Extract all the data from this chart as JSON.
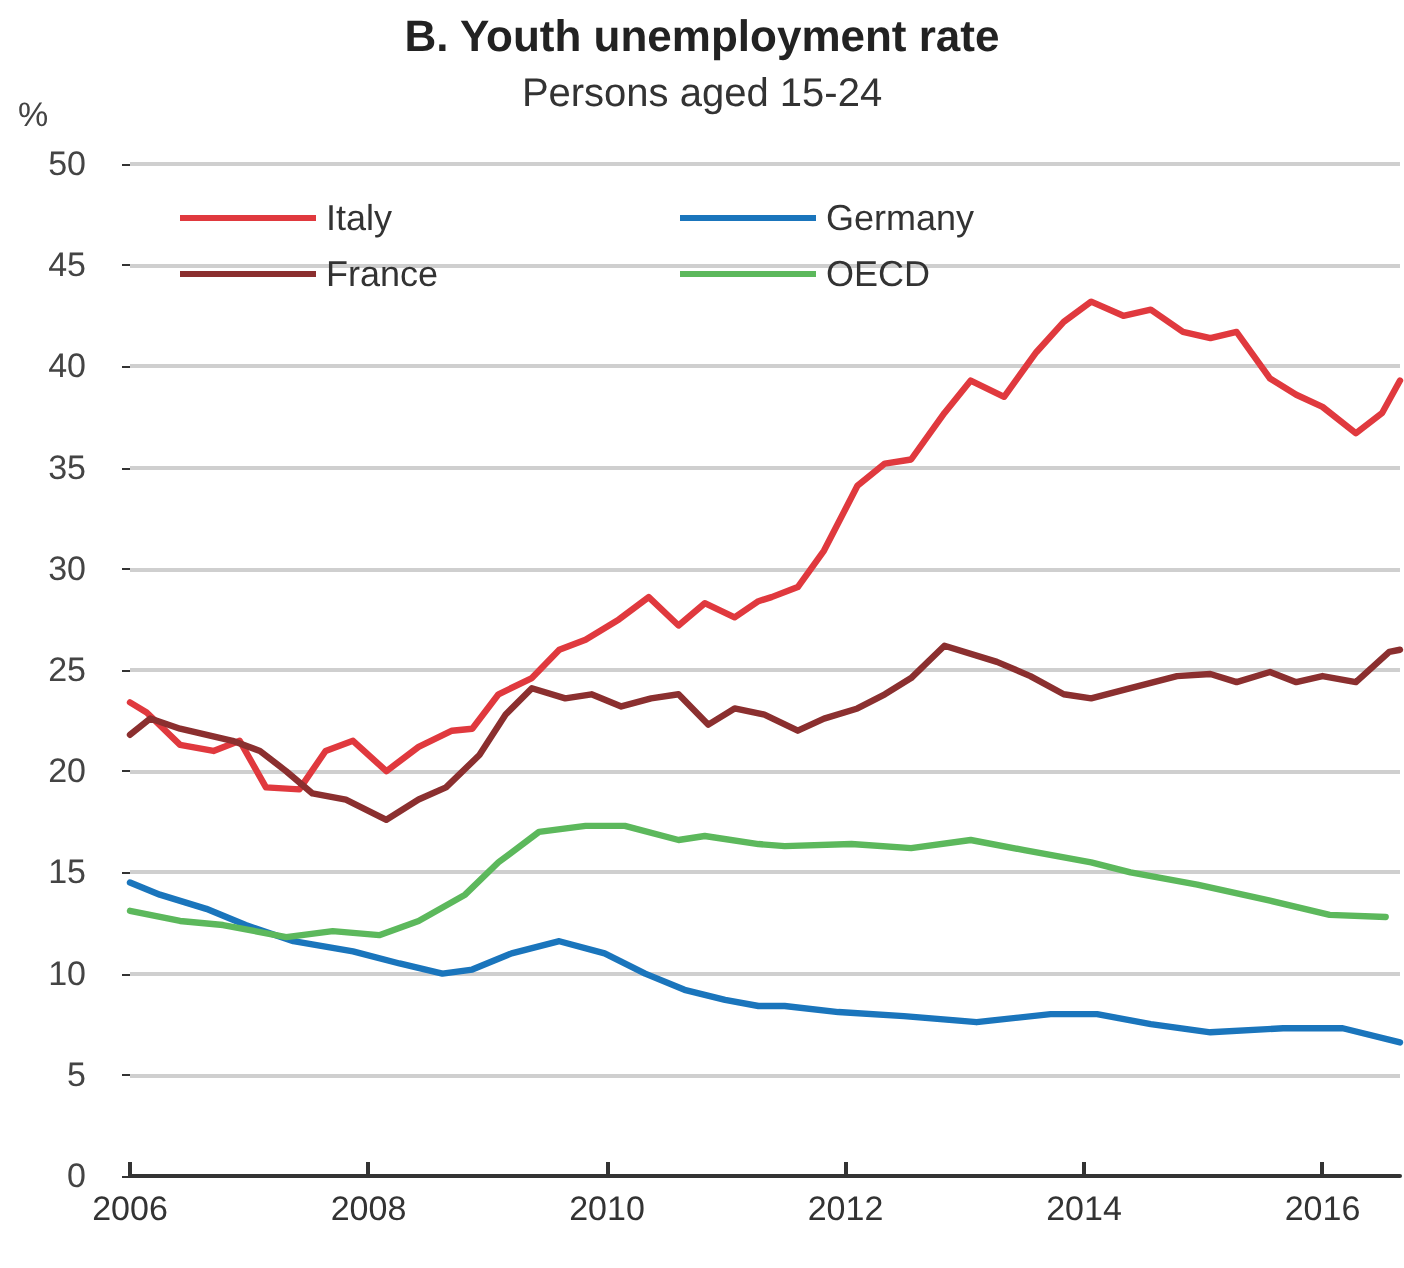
{
  "chart_data": {
    "type": "line",
    "title": "B. Youth unemployment rate",
    "subtitle": "Persons aged 15-24",
    "ylabel": "%",
    "xlim": [
      2006,
      2016.65
    ],
    "xticks": [
      2006,
      2008,
      2010,
      2012,
      2014,
      2016
    ],
    "ylim": [
      0,
      50
    ],
    "yticks": [
      0,
      5,
      10,
      15,
      20,
      25,
      30,
      35,
      40,
      45,
      50
    ],
    "grid": "y",
    "legend": "top left",
    "marker": "none",
    "line_style": "solid",
    "series": [
      {
        "name": "Italy",
        "color": "#e0393e",
        "x": [
          2006.0,
          2006.14,
          2006.42,
          2006.7,
          2006.92,
          2007.14,
          2007.42,
          2007.64,
          2007.87,
          2008.15,
          2008.42,
          2008.7,
          2008.87,
          2009.09,
          2009.37,
          2009.6,
          2009.82,
          2010.1,
          2010.35,
          2010.6,
          2010.82,
          2011.07,
          2011.27,
          2011.38,
          2011.6,
          2011.82,
          2012.1,
          2012.33,
          2012.55,
          2012.83,
          2013.05,
          2013.33,
          2013.6,
          2013.83,
          2014.06,
          2014.33,
          2014.56,
          2014.83,
          2015.06,
          2015.28,
          2015.56,
          2015.78,
          2016.0,
          2016.28,
          2016.5,
          2016.65
        ],
        "values": [
          23.4,
          22.9,
          21.3,
          21.0,
          21.5,
          19.2,
          19.1,
          21.0,
          21.5,
          20.0,
          21.2,
          22.0,
          22.1,
          23.8,
          24.6,
          26.0,
          26.5,
          27.5,
          28.6,
          27.2,
          28.3,
          27.6,
          28.4,
          28.6,
          29.1,
          30.9,
          34.1,
          35.2,
          35.4,
          37.7,
          39.3,
          38.5,
          40.7,
          42.2,
          43.2,
          42.5,
          42.8,
          41.7,
          41.4,
          41.7,
          39.4,
          38.6,
          38.0,
          36.7,
          37.7,
          39.3
        ]
      },
      {
        "name": "Germany",
        "color": "#1a75bc",
        "x": [
          2006.0,
          2006.25,
          2006.64,
          2006.97,
          2007.37,
          2007.87,
          2008.26,
          2008.62,
          2008.87,
          2009.2,
          2009.6,
          2009.98,
          2010.32,
          2010.65,
          2010.99,
          2011.27,
          2011.49,
          2011.94,
          2012.49,
          2013.1,
          2013.72,
          2014.11,
          2014.56,
          2015.06,
          2015.67,
          2016.17,
          2016.65
        ],
        "values": [
          14.5,
          13.9,
          13.2,
          12.4,
          11.6,
          11.1,
          10.5,
          10.0,
          10.2,
          11.0,
          11.6,
          11.0,
          10.0,
          9.2,
          8.7,
          8.4,
          8.4,
          8.1,
          7.9,
          7.6,
          8.0,
          8.0,
          7.5,
          7.1,
          7.3,
          7.3,
          6.6
        ]
      },
      {
        "name": "France",
        "color": "#8b2f2f",
        "x": [
          2006.0,
          2006.17,
          2006.42,
          2006.86,
          2007.09,
          2007.31,
          2007.53,
          2007.81,
          2008.15,
          2008.42,
          2008.65,
          2008.93,
          2009.15,
          2009.37,
          2009.65,
          2009.87,
          2010.12,
          2010.37,
          2010.6,
          2010.85,
          2011.07,
          2011.32,
          2011.6,
          2011.82,
          2012.1,
          2012.33,
          2012.55,
          2012.83,
          2013.27,
          2013.55,
          2013.83,
          2014.06,
          2014.39,
          2014.78,
          2015.06,
          2015.28,
          2015.56,
          2015.78,
          2016.0,
          2016.28,
          2016.56,
          2016.65
        ],
        "values": [
          21.8,
          22.6,
          22.1,
          21.5,
          21.0,
          20.0,
          18.9,
          18.6,
          17.6,
          18.6,
          19.2,
          20.8,
          22.8,
          24.1,
          23.6,
          23.8,
          23.2,
          23.6,
          23.8,
          22.3,
          23.1,
          22.8,
          22.0,
          22.6,
          23.1,
          23.8,
          24.6,
          26.2,
          25.4,
          24.7,
          23.8,
          23.6,
          24.1,
          24.7,
          24.8,
          24.4,
          24.9,
          24.4,
          24.7,
          24.4,
          25.9,
          26.0
        ]
      },
      {
        "name": "OECD",
        "color": "#5cb85c",
        "x": [
          2006.0,
          2006.42,
          2006.78,
          2007.31,
          2007.7,
          2008.09,
          2008.42,
          2008.81,
          2009.09,
          2009.43,
          2009.82,
          2010.15,
          2010.6,
          2010.82,
          2011.27,
          2011.49,
          2012.05,
          2012.55,
          2013.05,
          2013.5,
          2014.06,
          2014.39,
          2014.95,
          2015.56,
          2016.06,
          2016.53
        ],
        "values": [
          13.1,
          12.6,
          12.4,
          11.8,
          12.1,
          11.9,
          12.6,
          13.9,
          15.5,
          17.0,
          17.3,
          17.3,
          16.6,
          16.8,
          16.4,
          16.3,
          16.4,
          16.2,
          16.6,
          16.1,
          15.5,
          15.0,
          14.4,
          13.6,
          12.9,
          12.8
        ]
      }
    ]
  }
}
